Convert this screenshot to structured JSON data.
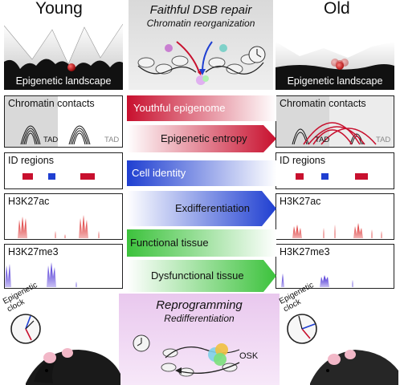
{
  "header": {
    "young_title": "Young",
    "old_title": "Old",
    "top_center_title": "Faithful DSB repair",
    "top_center_subtitle": "Chromatin reorganization",
    "bottom_center_title": "Reprogramming",
    "bottom_center_subtitle": "Redifferentiation"
  },
  "landscape_label": "Epigenetic landscape",
  "panels": {
    "chromatin": "Chromatin contacts",
    "tad": "TAD",
    "id_regions": "ID regions",
    "h3k27ac": "H3K27ac",
    "h3k27me3": "H3K27me3"
  },
  "arrows": {
    "youthful_epigenome": "Youthful epigenome",
    "epigenetic_entropy": "Epigenetic entropy",
    "cell_identity": "Cell identity",
    "exdifferentiation": "Exdifferentiation",
    "functional_tissue": "Functional tissue",
    "dysfunctional_tissue": "Dysfunctional tissue"
  },
  "clock_label": "Epigenetic clock",
  "osk_label": "OSK",
  "colors": {
    "red": "#c8102e",
    "blue": "#1f3fd1",
    "green": "#3cc23c",
    "purple": "#3a1fd1",
    "grey_panel": "#d9d9d9",
    "reprogramming_bg": "#ead0f0"
  }
}
